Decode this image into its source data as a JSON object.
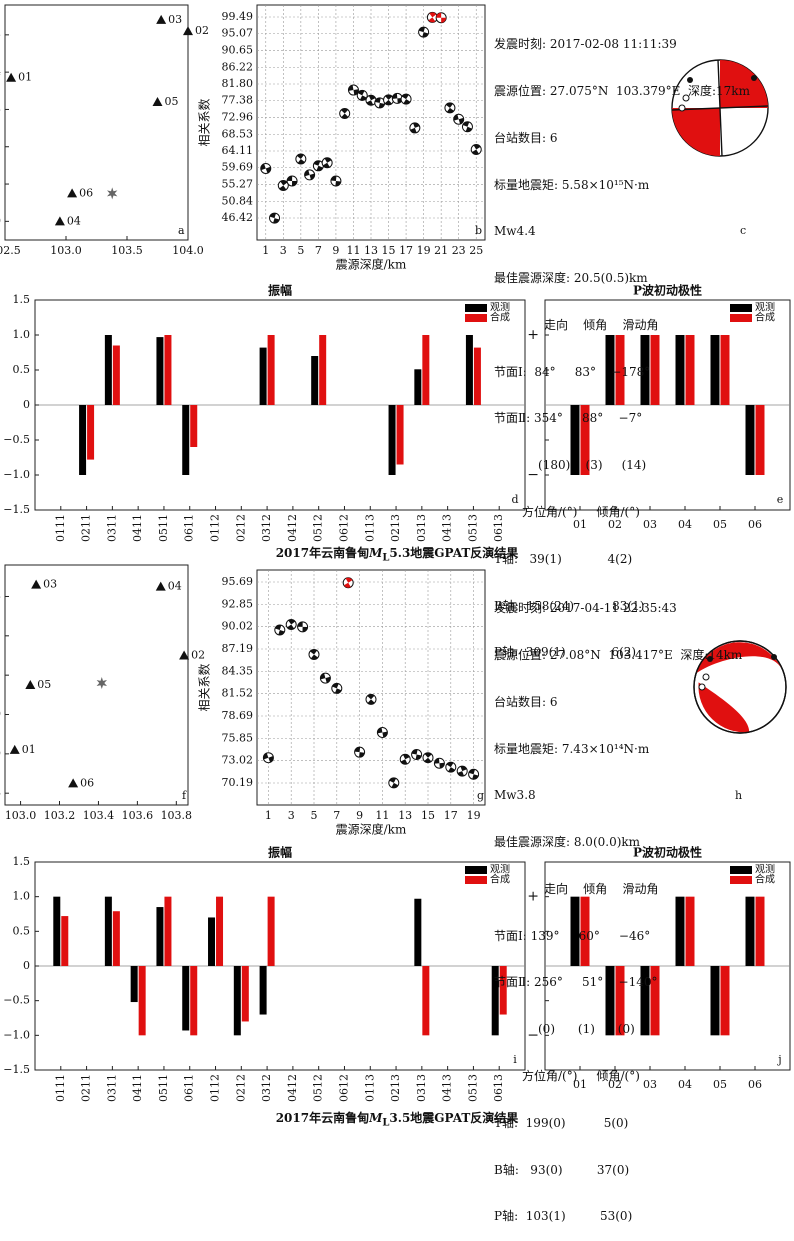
{
  "figure1": {
    "panel_labels": {
      "a": "a",
      "b": "b",
      "c": "c",
      "d": "d",
      "e": "e"
    },
    "caption_pre": "2017年云南鲁甸",
    "caption_mag": "M",
    "caption_sub": "L",
    "caption_post": "5.3地震GPAT反演结果",
    "info": {
      "time": "发震时刻: 2017-02-08 11:11:39",
      "location": "震源位置: 27.075°N  103.379°E  深度:17km",
      "stations": "台站数目: 6",
      "moment": "标量地震矩: 5.58×10¹⁵N·m",
      "mw": "Mw4.4",
      "best_depth": "最佳震源深度: 20.5(0.5)km",
      "np_header": "走向    倾角    滑动角",
      "np1": "节面Ⅰ:  84°     83°    −178°",
      "np2": "节面Ⅱ: 354°     88°    −7°",
      "np_err": "(180)    (3)     (14)",
      "axes_header": "方位角/(°)     倾角/(°)",
      "t_axis": "T轴:   39(1)            4(2)",
      "b_axis": "B轴:  158(24)          83(1)",
      "p_axis": "P轴:  309(1)            6(2)"
    }
  },
  "figure2": {
    "panel_labels": {
      "f": "f",
      "g": "g",
      "h": "h",
      "i": "i",
      "j": "j"
    },
    "caption_pre": "2017年云南鲁甸",
    "caption_mag": "M",
    "caption_sub": "L",
    "caption_post": "3.5地震GPAT反演结果",
    "info": {
      "time": "发震时刻: 2017-04-11 22:35:43",
      "location": "震源位置: 27.08°N  103.417°E  深度:14km",
      "stations": "台站数目: 6",
      "moment": "标量地震矩: 7.43×10¹⁴N·m",
      "mw": "Mw3.8",
      "best_depth": "最佳震源深度: 8.0(0.0)km",
      "np_header": "走向    倾角    滑动角",
      "np1": "节面Ⅰ: 139°     60°     −46°",
      "np2": "节面Ⅱ: 256°     51°    −140°",
      "np_err": "(0)      (1)      (0)",
      "axes_header": "方位角/(°)     倾角/(°)",
      "t_axis": "T轴:  199(0)          5(0)",
      "b_axis": "B轴:   93(0)         37(0)",
      "p_axis": "P轴:  103(1)         53(0)"
    }
  },
  "chart_data": [
    {
      "id": "a",
      "type": "scatter",
      "xlim": [
        102.5,
        104.0
      ],
      "ylim": [
        26.95,
        27.58
      ],
      "x_ticks": [
        "102.5",
        "103.0",
        "103.5",
        "104.0"
      ],
      "y_ticks": [
        "27.0",
        "27.1",
        "27.2",
        "27.3",
        "27.4",
        "27.5"
      ],
      "stations": [
        {
          "name": "01",
          "x": 102.55,
          "y": 27.385
        },
        {
          "name": "02",
          "x": 104.0,
          "y": 27.51
        },
        {
          "name": "03",
          "x": 103.78,
          "y": 27.54
        },
        {
          "name": "04",
          "x": 102.95,
          "y": 27.0
        },
        {
          "name": "05",
          "x": 103.75,
          "y": 27.32
        },
        {
          "name": "06",
          "x": 103.05,
          "y": 27.075
        }
      ],
      "epicenter": {
        "x": 103.379,
        "y": 27.075
      }
    },
    {
      "id": "b",
      "type": "scatter",
      "xlabel": "震源深度/km",
      "ylabel": "相关系数",
      "xlim": [
        0,
        26
      ],
      "x_ticks": [
        "1",
        "3",
        "5",
        "7",
        "9",
        "11",
        "13",
        "15",
        "17",
        "19",
        "21",
        "23",
        "25"
      ],
      "y_ticks": [
        "46.42",
        "50.84",
        "55.27",
        "59.69",
        "64.11",
        "68.53",
        "72.96",
        "77.38",
        "81.80",
        "86.22",
        "90.65",
        "95.07",
        "99.49"
      ],
      "x": [
        1,
        2,
        3,
        4,
        5,
        6,
        7,
        8,
        9,
        10,
        11,
        12,
        13,
        14,
        15,
        16,
        17,
        18,
        19,
        20,
        21,
        22,
        23,
        24,
        25
      ],
      "y": [
        59.5,
        46.4,
        55.0,
        56.2,
        62.0,
        57.8,
        60.2,
        61.0,
        56.2,
        74.0,
        80.2,
        78.8,
        77.5,
        76.8,
        77.6,
        78.0,
        77.8,
        70.2,
        95.5,
        99.4,
        99.3,
        75.5,
        72.5,
        70.5,
        64.5
      ],
      "best_index": [
        19,
        20
      ]
    },
    {
      "id": "d",
      "type": "bar",
      "title": "振幅",
      "categories": [
        "0111",
        "0211",
        "0311",
        "0411",
        "0511",
        "0611",
        "0112",
        "0212",
        "0312",
        "0412",
        "0512",
        "0612",
        "0113",
        "0213",
        "0313",
        "0413",
        "0513",
        "0613"
      ],
      "ylim": [
        -1.5,
        1.5
      ],
      "y_ticks": [
        "1.5",
        "1.0",
        "0.5",
        "0",
        "−0.5",
        "−1.0",
        "−1.5"
      ],
      "series": [
        {
          "name": "观测",
          "color": "#000000",
          "values": [
            0,
            -1.0,
            1.0,
            0,
            0.97,
            -1.0,
            0,
            0,
            0.82,
            0,
            0.7,
            0,
            0,
            -1.0,
            0.51,
            0,
            1.0,
            0
          ]
        },
        {
          "name": "合成",
          "color": "#e01010",
          "values": [
            0,
            -0.78,
            0.85,
            0,
            1.0,
            -0.6,
            0,
            0,
            1.0,
            0,
            1.0,
            0,
            0,
            -0.85,
            1.0,
            0,
            0.82,
            0
          ]
        }
      ]
    },
    {
      "id": "e",
      "type": "bar",
      "title": "P波初动极性",
      "categories": [
        "01",
        "02",
        "03",
        "04",
        "05",
        "06"
      ],
      "ylim": [
        -1.5,
        1.5
      ],
      "series": [
        {
          "name": "观测",
          "color": "#000000",
          "values": [
            -1,
            1,
            1,
            1,
            1,
            -1
          ]
        },
        {
          "name": "合成",
          "color": "#e01010",
          "values": [
            -1,
            1,
            1,
            1,
            1,
            -1
          ]
        }
      ]
    },
    {
      "id": "f",
      "type": "scatter",
      "xlim": [
        102.92,
        103.86
      ],
      "ylim": [
        26.77,
        27.38
      ],
      "x_ticks": [
        "103.0",
        "103.2",
        "103.4",
        "103.6",
        "103.8"
      ],
      "y_ticks": [
        "26.8",
        "26.9",
        "27.0",
        "27.1",
        "27.2",
        "27.3"
      ],
      "stations": [
        {
          "name": "01",
          "x": 102.97,
          "y": 26.91
        },
        {
          "name": "02",
          "x": 103.84,
          "y": 27.15
        },
        {
          "name": "03",
          "x": 103.08,
          "y": 27.33
        },
        {
          "name": "04",
          "x": 103.72,
          "y": 27.325
        },
        {
          "name": "05",
          "x": 103.05,
          "y": 27.075
        },
        {
          "name": "06",
          "x": 103.27,
          "y": 26.825
        }
      ],
      "epicenter": {
        "x": 103.417,
        "y": 27.08
      }
    },
    {
      "id": "g",
      "type": "scatter",
      "xlabel": "震源深度/km",
      "ylabel": "相关系数",
      "xlim": [
        0,
        20
      ],
      "x_ticks": [
        "1",
        "3",
        "5",
        "7",
        "9",
        "11",
        "13",
        "15",
        "17",
        "19"
      ],
      "y_ticks": [
        "70.19",
        "73.02",
        "75.85",
        "78.69",
        "81.52",
        "84.35",
        "87.19",
        "90.02",
        "92.85",
        "95.69"
      ],
      "x": [
        1,
        2,
        3,
        4,
        5,
        6,
        7,
        8,
        9,
        10,
        11,
        12,
        13,
        14,
        15,
        16,
        17,
        18,
        19
      ],
      "y": [
        73.4,
        89.6,
        90.3,
        90.0,
        86.5,
        83.5,
        82.2,
        95.6,
        74.1,
        80.8,
        76.6,
        70.2,
        73.2,
        73.8,
        73.4,
        72.7,
        72.2,
        71.7,
        71.3
      ],
      "best_index": [
        7
      ]
    },
    {
      "id": "i",
      "type": "bar",
      "title": "振幅",
      "categories": [
        "0111",
        "0211",
        "0311",
        "0411",
        "0511",
        "0611",
        "0112",
        "0212",
        "0312",
        "0412",
        "0512",
        "0612",
        "0113",
        "0213",
        "0313",
        "0413",
        "0513",
        "0613"
      ],
      "ylim": [
        -1.5,
        1.5
      ],
      "y_ticks": [
        "1.5",
        "1.0",
        "0.5",
        "0",
        "−0.5",
        "−1.0",
        "−1.5"
      ],
      "series": [
        {
          "name": "观测",
          "color": "#000000",
          "values": [
            1.0,
            0,
            1.0,
            -0.52,
            0.85,
            -0.93,
            0.7,
            -1.0,
            -0.7,
            0,
            0,
            0,
            0,
            0,
            0.97,
            0,
            0,
            -1.0
          ]
        },
        {
          "name": "合成",
          "color": "#e01010",
          "values": [
            0.72,
            0,
            0.79,
            -1.0,
            1.0,
            -1.0,
            1.0,
            -0.8,
            1.0,
            0,
            0,
            0,
            0,
            0,
            -1.0,
            0,
            0,
            -0.7
          ]
        }
      ]
    },
    {
      "id": "j",
      "type": "bar",
      "title": "P波初动极性",
      "categories": [
        "01",
        "02",
        "03",
        "04",
        "05",
        "06"
      ],
      "ylim": [
        -1.5,
        1.5
      ],
      "series": [
        {
          "name": "观测",
          "color": "#000000",
          "values": [
            1,
            -1,
            -1,
            1,
            -1,
            1
          ]
        },
        {
          "name": "合成",
          "color": "#e01010",
          "values": [
            1,
            -1,
            -1,
            1,
            -1,
            1
          ]
        }
      ]
    }
  ]
}
